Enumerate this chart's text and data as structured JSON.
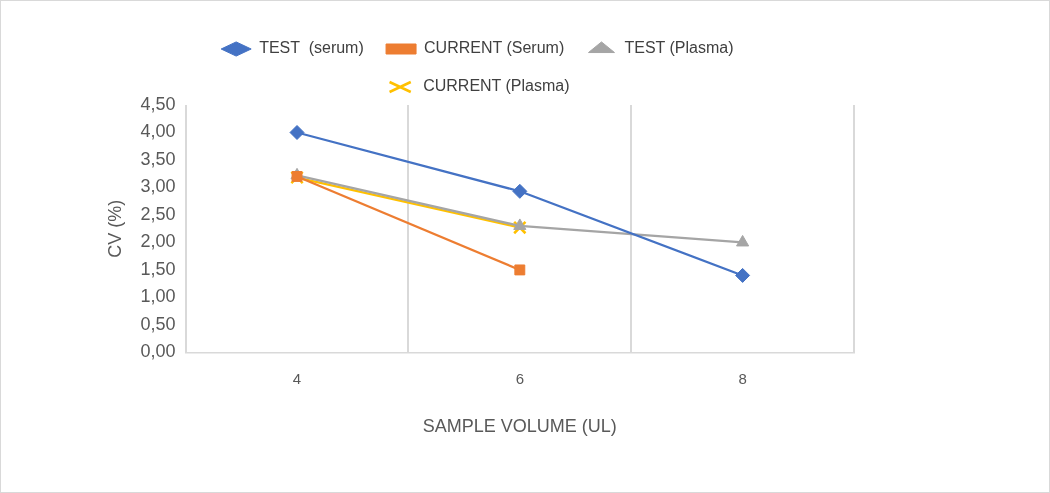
{
  "chart_data": {
    "type": "line",
    "categories": [
      "4",
      "6",
      "8"
    ],
    "xlabel": "SAMPLE VOLUME (UL)",
    "ylabel": "CV (%)",
    "ylim": [
      0,
      4.5
    ],
    "yticks": [
      {
        "value": 0,
        "label": "0,00"
      },
      {
        "value": 0.5,
        "label": "0,50"
      },
      {
        "value": 1,
        "label": "1,00"
      },
      {
        "value": 1.5,
        "label": "1,50"
      },
      {
        "value": 2,
        "label": "2,00"
      },
      {
        "value": 2.5,
        "label": "2,50"
      },
      {
        "value": 3,
        "label": "3,00"
      },
      {
        "value": 3.5,
        "label": "3,50"
      },
      {
        "value": 4,
        "label": "4,00"
      },
      {
        "value": 4.5,
        "label": "4,50"
      }
    ],
    "grid": "x",
    "legend": "top",
    "line_style": "solid",
    "series": [
      {
        "name": "TEST  (serum)",
        "color": "#4472c4",
        "marker": "diamond",
        "values": [
          4.0,
          2.93,
          1.4
        ]
      },
      {
        "name": "CURRENT (Serum)",
        "color": "#ed7d31",
        "marker": "square",
        "values": [
          3.2,
          1.5,
          null
        ]
      },
      {
        "name": "TEST (Plasma)",
        "color": "#a5a5a5",
        "marker": "triangle",
        "values": [
          3.22,
          2.3,
          2.0
        ]
      },
      {
        "name": "CURRENT (Plasma)",
        "color": "#ffc000",
        "marker": "cross",
        "values": [
          3.18,
          2.27,
          null
        ]
      }
    ]
  }
}
